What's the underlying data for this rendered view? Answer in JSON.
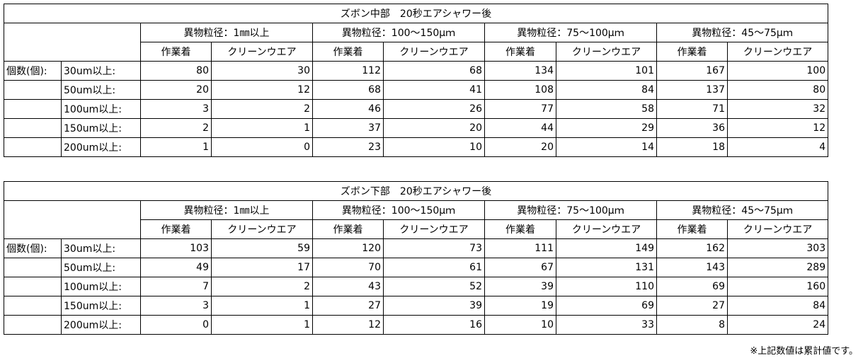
{
  "tables": [
    {
      "title": "ズボン中部　20秒エアシャワー後",
      "groups": [
        "異物粒径：1㎜以上",
        "異物粒径：100～150μｍ",
        "異物粒径：75～100μｍ",
        "異物粒径：45～75μｍ"
      ],
      "subs": [
        "作業着",
        "クリーンウエア"
      ],
      "row_label": "個数(個):",
      "rows": [
        {
          "label": "30um以上:",
          "values": [
            80,
            30,
            112,
            68,
            134,
            101,
            167,
            100
          ]
        },
        {
          "label": "50um以上:",
          "values": [
            20,
            12,
            68,
            41,
            108,
            84,
            137,
            80
          ]
        },
        {
          "label": "100um以上:",
          "values": [
            3,
            2,
            46,
            26,
            77,
            58,
            71,
            32
          ]
        },
        {
          "label": "150um以上:",
          "values": [
            2,
            1,
            37,
            20,
            44,
            29,
            36,
            12
          ]
        },
        {
          "label": "200um以上:",
          "values": [
            1,
            0,
            23,
            10,
            20,
            14,
            18,
            4
          ]
        }
      ]
    },
    {
      "title": "ズボン下部　20秒エアシャワー後",
      "groups": [
        "異物粒径：1㎜以上",
        "異物粒径：100～150μｍ",
        "異物粒径：75～100μｍ",
        "異物粒径：45～75μｍ"
      ],
      "subs": [
        "作業着",
        "クリーンウエア"
      ],
      "row_label": "個数(個):",
      "rows": [
        {
          "label": "30um以上:",
          "values": [
            103,
            59,
            120,
            73,
            111,
            149,
            162,
            303
          ]
        },
        {
          "label": "50um以上:",
          "values": [
            49,
            17,
            70,
            61,
            67,
            131,
            143,
            289
          ]
        },
        {
          "label": "100um以上:",
          "values": [
            7,
            2,
            43,
            52,
            39,
            110,
            69,
            160
          ]
        },
        {
          "label": "150um以上:",
          "values": [
            3,
            1,
            27,
            39,
            19,
            69,
            27,
            84
          ]
        },
        {
          "label": "200um以上:",
          "values": [
            0,
            1,
            12,
            16,
            10,
            33,
            8,
            24
          ]
        }
      ]
    }
  ],
  "note": "※上記数値は累計値です。"
}
